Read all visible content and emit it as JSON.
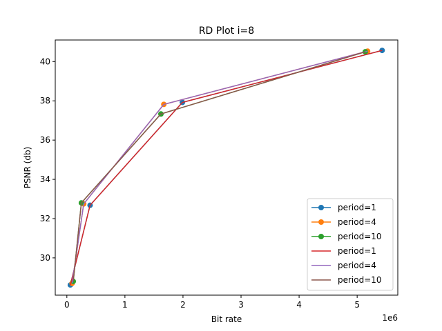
{
  "chart_data": {
    "type": "line",
    "title": "RD Plot i=8",
    "xlabel": "Bit rate",
    "ylabel": "PSNR (db)",
    "x_offset_label": "1e6",
    "xlim": [
      -200000,
      5700000
    ],
    "ylim": [
      28.1,
      41.1
    ],
    "xticks": [
      0,
      1000000,
      2000000,
      3000000,
      4000000,
      5000000
    ],
    "xtick_labels": [
      "0",
      "1",
      "2",
      "3",
      "4",
      "5"
    ],
    "yticks": [
      30,
      32,
      34,
      36,
      38,
      40
    ],
    "ytick_labels": [
      "30",
      "32",
      "34",
      "36",
      "38",
      "40"
    ],
    "grid": false,
    "legend_position": "lower-right",
    "series": [
      {
        "name": "period=1",
        "color": "#1f77b4",
        "marker": "circle",
        "x": [
          60000,
          400000,
          1990000,
          5430000
        ],
        "y": [
          28.62,
          32.68,
          37.92,
          40.57
        ]
      },
      {
        "name": "period=4",
        "color": "#ff7f0e",
        "marker": "circle",
        "x": [
          90000,
          290000,
          1670000,
          5180000
        ],
        "y": [
          28.7,
          32.75,
          37.82,
          40.53
        ]
      },
      {
        "name": "period=10",
        "color": "#2ca02c",
        "marker": "circle",
        "x": [
          110000,
          250000,
          1620000,
          5140000
        ],
        "y": [
          28.8,
          32.8,
          37.33,
          40.5
        ]
      },
      {
        "name": "period=1",
        "color": "#d62728",
        "marker": "none",
        "x": [
          60000,
          400000,
          1990000,
          5430000
        ],
        "y": [
          28.62,
          32.68,
          37.92,
          40.57
        ]
      },
      {
        "name": "period=4",
        "color": "#9467bd",
        "marker": "none",
        "x": [
          90000,
          290000,
          1670000,
          5180000
        ],
        "y": [
          28.7,
          32.75,
          37.82,
          40.53
        ]
      },
      {
        "name": "period=10",
        "color": "#8c564b",
        "marker": "none",
        "x": [
          110000,
          250000,
          1620000,
          5140000
        ],
        "y": [
          28.8,
          32.8,
          37.33,
          40.5
        ]
      }
    ]
  }
}
